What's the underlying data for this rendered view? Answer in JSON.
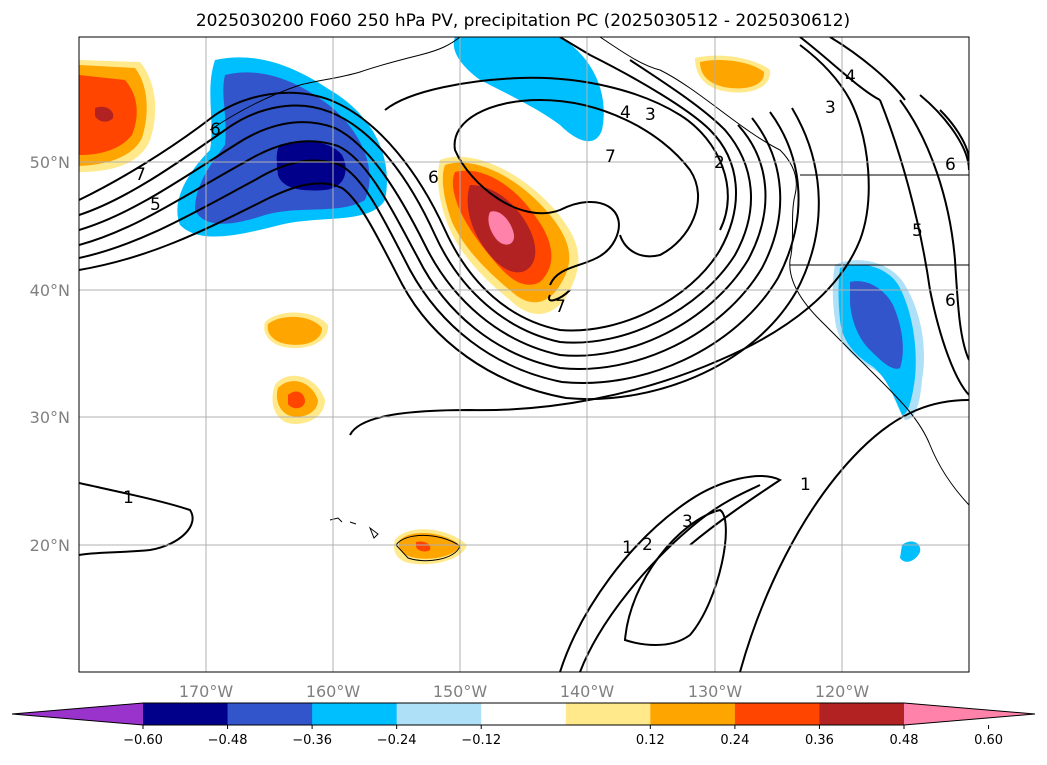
{
  "title": "2025030200 F060 250 hPa PV, precipitation PC (2025030512 - 2025030612)",
  "map": {
    "lat_labels": [
      "50°N",
      "40°N",
      "30°N",
      "20°N"
    ],
    "lon_labels": [
      "170°W",
      "160°W",
      "150°W",
      "140°W",
      "130°W",
      "120°W"
    ],
    "grid": true,
    "pv_contour_labels": [
      "7",
      "5",
      "6",
      "6",
      "7",
      "4",
      "3",
      "7",
      "2",
      "4",
      "3",
      "6",
      "5",
      "6",
      "1",
      "1",
      "2",
      "3",
      "1"
    ],
    "precip_colorbar": {
      "ticks": [
        "−0.60",
        "−0.48",
        "−0.36",
        "−0.24",
        "−0.12",
        "0.12",
        "0.24",
        "0.36",
        "0.48",
        "0.60"
      ],
      "colors": [
        "#9933cc",
        "#00008b",
        "#3355cc",
        "#00bfff",
        "#aee0f7",
        "#ffffff",
        "#ffe98a",
        "#ffa500",
        "#ff4500",
        "#b22222",
        "#ff82ab"
      ],
      "extend": "both"
    }
  }
}
